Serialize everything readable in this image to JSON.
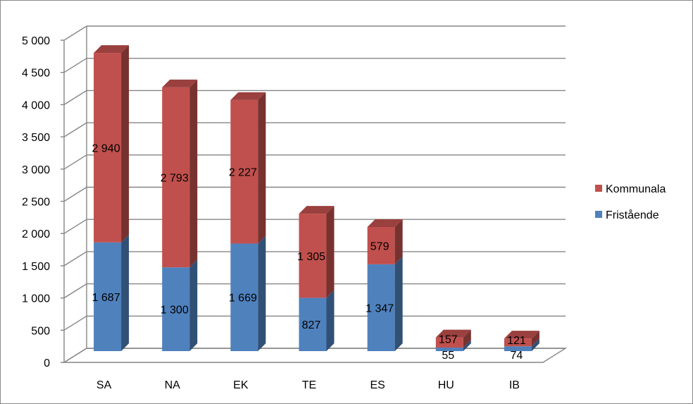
{
  "chart_data": {
    "type": "bar",
    "stacked": true,
    "three_d": true,
    "categories": [
      "SA",
      "NA",
      "EK",
      "TE",
      "ES",
      "HU",
      "IB"
    ],
    "series": [
      {
        "name": "Fristående",
        "color": "#4F81BD",
        "values": [
          1687,
          1300,
          1669,
          827,
          1347,
          55,
          74
        ],
        "labels": [
          "1 687",
          "1 300",
          "1 669",
          "827",
          "1 347",
          "55",
          "74"
        ]
      },
      {
        "name": "Kommunala",
        "color": "#C0504D",
        "values": [
          2940,
          2793,
          2227,
          1305,
          579,
          157,
          121
        ],
        "labels": [
          "2 940",
          "2 793",
          "2 227",
          "1 305",
          "579",
          "157",
          "121"
        ]
      }
    ],
    "ylim": [
      0,
      5000
    ],
    "yticks": [
      0,
      500,
      1000,
      1500,
      2000,
      2500,
      3000,
      3500,
      4000,
      4500,
      5000
    ],
    "ytick_labels": [
      "0",
      "500",
      "1 000",
      "1 500",
      "2 000",
      "2 500",
      "3 000",
      "3 500",
      "4 000",
      "4 500",
      "5 000"
    ],
    "legend": {
      "position": "right",
      "order": [
        "Kommunala",
        "Fristående"
      ]
    },
    "grid": true,
    "title": "",
    "xlabel": "",
    "ylabel": ""
  }
}
